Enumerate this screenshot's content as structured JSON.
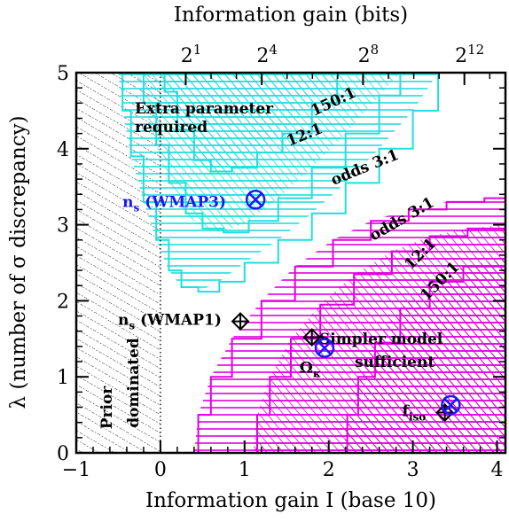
{
  "chart_data": {
    "type": "area",
    "xlabel": "Information gain I (base 10)",
    "ylabel": "λ (number of σ discrepancy)",
    "top_axis_label": "Information gain (bits)",
    "xlim": [
      -1,
      4.1
    ],
    "ylim": [
      0,
      5
    ],
    "x_ticks": [
      -1,
      0,
      1,
      2,
      3,
      4
    ],
    "x_tick_labels": [
      "−1",
      "0",
      "1",
      "2",
      "3",
      "4"
    ],
    "y_ticks": [
      0,
      1,
      2,
      3,
      4,
      5
    ],
    "y_tick_labels": [
      "0",
      "1",
      "2",
      "3",
      "4",
      "5"
    ],
    "top_ticks": [
      {
        "base": "2",
        "exp": "1",
        "I": 0.301
      },
      {
        "base": "2",
        "exp": "4",
        "I": 1.204
      },
      {
        "base": "2",
        "exp": "8",
        "I": 2.408
      },
      {
        "base": "2",
        "exp": "12",
        "I": 3.612
      }
    ],
    "colors": {
      "extra_parameter": "#22dede",
      "simpler_model": "#e000e0",
      "prior_dominated": "#000000",
      "marker_blue": "#1a1aee",
      "marker_black": "#000000"
    },
    "regions": {
      "prior_dominated": {
        "label_line1": "Prior",
        "label_line2": "dominated",
        "x_range": [
          -1,
          0
        ]
      },
      "extra_parameter": {
        "label_line1": "Extra parameter",
        "label_line2": "required",
        "contours": [
          {
            "odds": "odds 3:1",
            "boundary": [
              [
                -0.5,
                5
              ],
              [
                -0.45,
                4.5
              ],
              [
                -0.35,
                3.9
              ],
              [
                -0.2,
                3.3
              ],
              [
                -0.05,
                2.8
              ],
              [
                0.1,
                2.4
              ],
              [
                0.25,
                2.18
              ],
              [
                0.45,
                2.12
              ],
              [
                0.7,
                2.25
              ],
              [
                1.0,
                2.5
              ],
              [
                1.4,
                2.8
              ],
              [
                1.8,
                3.15
              ],
              [
                2.2,
                3.55
              ],
              [
                2.6,
                4.0
              ],
              [
                3.0,
                4.5
              ],
              [
                3.3,
                5
              ]
            ]
          },
          {
            "odds": "12:1",
            "boundary": [
              [
                -0.28,
                5
              ],
              [
                -0.2,
                4.6
              ],
              [
                -0.05,
                4.05
              ],
              [
                0.1,
                3.55
              ],
              [
                0.3,
                3.15
              ],
              [
                0.5,
                2.95
              ],
              [
                0.75,
                2.9
              ],
              [
                1.05,
                3.05
              ],
              [
                1.4,
                3.35
              ],
              [
                1.8,
                3.75
              ],
              [
                2.2,
                4.2
              ],
              [
                2.6,
                4.7
              ],
              [
                2.85,
                5
              ]
            ]
          },
          {
            "odds": "150:1",
            "boundary": [
              [
                0.0,
                5
              ],
              [
                0.05,
                4.75
              ],
              [
                0.2,
                4.25
              ],
              [
                0.4,
                3.85
              ],
              [
                0.6,
                3.7
              ],
              [
                0.85,
                3.75
              ],
              [
                1.15,
                3.95
              ],
              [
                1.45,
                4.2
              ],
              [
                1.8,
                4.6
              ],
              [
                2.1,
                5
              ]
            ]
          }
        ]
      },
      "simpler_model": {
        "label_line1": "Simpler model",
        "label_line2": "sufficient",
        "contours": [
          {
            "odds": "odds 3:1",
            "boundary": [
              [
                0.4,
                0
              ],
              [
                0.45,
                0.5
              ],
              [
                0.6,
                1.0
              ],
              [
                0.85,
                1.5
              ],
              [
                1.2,
                2.0
              ],
              [
                1.6,
                2.45
              ],
              [
                2.05,
                2.8
              ],
              [
                2.5,
                3.05
              ],
              [
                2.95,
                3.2
              ],
              [
                3.4,
                3.3
              ],
              [
                3.85,
                3.35
              ],
              [
                4.1,
                3.35
              ]
            ]
          },
          {
            "odds": "12:1",
            "boundary": [
              [
                1.1,
                0
              ],
              [
                1.15,
                0.5
              ],
              [
                1.3,
                1.0
              ],
              [
                1.55,
                1.5
              ],
              [
                1.9,
                1.95
              ],
              [
                2.3,
                2.35
              ],
              [
                2.75,
                2.65
              ],
              [
                3.2,
                2.85
              ],
              [
                3.65,
                2.95
              ],
              [
                4.1,
                3.0
              ]
            ]
          },
          {
            "odds": "150:1",
            "boundary": [
              [
                2.18,
                0
              ],
              [
                2.22,
                0.5
              ],
              [
                2.35,
                1.0
              ],
              [
                2.55,
                1.45
              ],
              [
                2.85,
                1.9
              ],
              [
                3.2,
                2.25
              ],
              [
                3.6,
                2.45
              ],
              [
                4.1,
                2.55
              ]
            ]
          }
        ]
      }
    },
    "vertical_dotted_line_x": 0,
    "points": [
      {
        "label": "n",
        "sub": "s",
        "tail": " (WMAP3)",
        "x": 1.13,
        "y": 3.33,
        "marker": "circled-x",
        "color": "#1a1aee"
      },
      {
        "label": "n",
        "sub": "s",
        "tail": " (WMAP1)",
        "x": 0.95,
        "y": 1.73,
        "marker": "diamond-plus",
        "color": "#000000"
      },
      {
        "label": "Ω",
        "sub": "κ",
        "tail": "",
        "x": 1.8,
        "y": 1.52,
        "marker": "diamond-plus",
        "color": "#000000"
      },
      {
        "label": "",
        "sub": "",
        "tail": "",
        "x": 1.95,
        "y": 1.38,
        "marker": "circled-x",
        "color": "#1a1aee"
      },
      {
        "label": "f",
        "sub": "iso",
        "tail": "",
        "x": 3.38,
        "y": 0.53,
        "marker": "diamond-plus",
        "color": "#000000"
      },
      {
        "label": "",
        "sub": "",
        "tail": "",
        "x": 3.45,
        "y": 0.63,
        "marker": "circled-x",
        "color": "#1a1aee"
      }
    ]
  }
}
